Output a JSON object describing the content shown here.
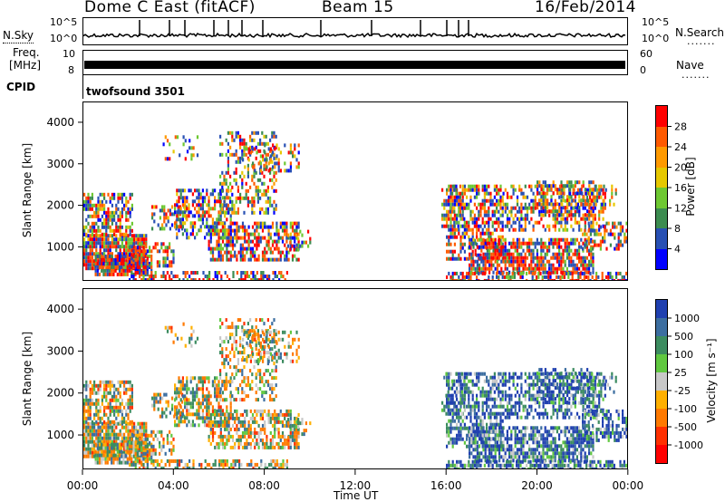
{
  "header": {
    "station": "Dome C East (fitACF)",
    "beam": "Beam 15",
    "date": "16/Feb/2014"
  },
  "left_labels": {
    "nsky": "N.Sky",
    "freq": "Freq.",
    "freq_unit": "[MHz]",
    "cpid": "CPID"
  },
  "right_labels": {
    "nsearch": "N.Search",
    "nave": "Nave",
    "dots": "......."
  },
  "noise_axis": {
    "top": "10^5",
    "bottom": "10^0",
    "right_top": "10^5",
    "right_bottom": "10^0"
  },
  "freq_axis": {
    "top": "10",
    "bottom": "8",
    "right_top": "60",
    "right_bottom": "0"
  },
  "cpid_label": "twofsound 3501",
  "chart_data": [
    {
      "type": "heatmap",
      "panel": "power",
      "ylabel": "Slant Range [km]",
      "yticks": [
        1000,
        2000,
        3000,
        4000
      ],
      "ylim": [
        180,
        4500
      ],
      "xlim": [
        0,
        24
      ],
      "colorbar_label": "Power [dB]",
      "colorbar_ticks": [
        "28",
        "24",
        "20",
        "16",
        "12",
        "8",
        "4"
      ],
      "colors": [
        "#ff0000",
        "#ff5a00",
        "#ff9a00",
        "#e6c800",
        "#6ec832",
        "#3c8c50",
        "#2850b4",
        "#0000ff"
      ]
    },
    {
      "type": "heatmap",
      "panel": "velocity",
      "ylabel": "Slant Range [km]",
      "yticks": [
        1000,
        2000,
        3000,
        4000
      ],
      "ylim": [
        180,
        4500
      ],
      "xlim": [
        0,
        24
      ],
      "colorbar_label": "Velocity [m s⁻¹]",
      "colorbar_ticks": [
        "1000",
        "500",
        "100",
        "25",
        "-25",
        "-100",
        "-500",
        "-1000"
      ],
      "colors": [
        "#2040b0",
        "#3c6ea0",
        "#3c8c60",
        "#60c840",
        "#c8c8c8",
        "#ffb000",
        "#ff7a00",
        "#ff3000",
        "#ff0000"
      ]
    }
  ],
  "xaxis": {
    "ticks": [
      "00:00",
      "04:00",
      "08:00",
      "12:00",
      "16:00",
      "20:00",
      "00:00"
    ],
    "label": "Time UT"
  }
}
